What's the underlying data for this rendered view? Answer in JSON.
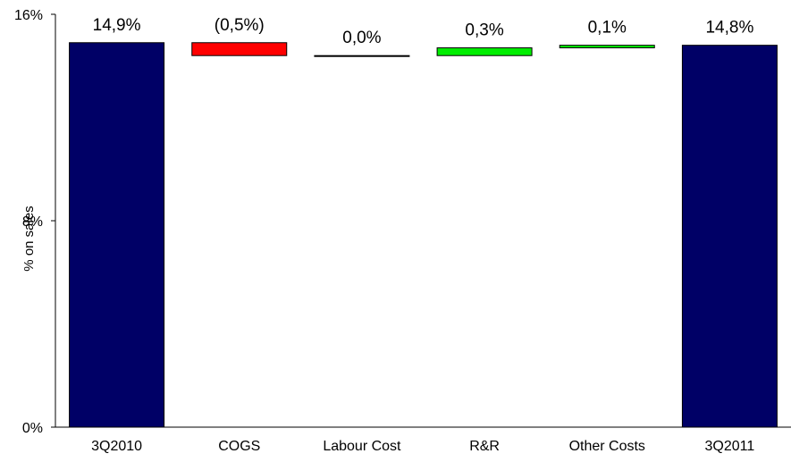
{
  "chart_data": {
    "type": "bar",
    "subtype": "waterfall",
    "title": "",
    "xlabel": "",
    "ylabel": "% on sales",
    "ylim": [
      0,
      16
    ],
    "yticks": [
      0,
      8,
      16
    ],
    "ytick_labels": [
      "0%",
      "8%",
      "16%"
    ],
    "grid": false,
    "legend": "none",
    "categories": [
      "3Q2010",
      "COGS",
      "Labour Cost",
      "R&R",
      "Other Costs",
      "3Q2011"
    ],
    "steps": [
      {
        "category": "3Q2010",
        "kind": "total",
        "value": 14.9,
        "label": "14,9%",
        "color": "#000066"
      },
      {
        "category": "COGS",
        "kind": "delta",
        "value": -0.5,
        "label": "(0,5%)",
        "color": "#ff0000"
      },
      {
        "category": "Labour Cost",
        "kind": "delta",
        "value": 0.0,
        "label": "0,0%",
        "color": "#000000"
      },
      {
        "category": "R&R",
        "kind": "delta",
        "value": 0.3,
        "label": "0,3%",
        "color": "#00ee00"
      },
      {
        "category": "Other Costs",
        "kind": "delta",
        "value": 0.1,
        "label": "0,1%",
        "color": "#00ee00"
      },
      {
        "category": "3Q2011",
        "kind": "total",
        "value": 14.8,
        "label": "14,8%",
        "color": "#000066"
      }
    ]
  }
}
